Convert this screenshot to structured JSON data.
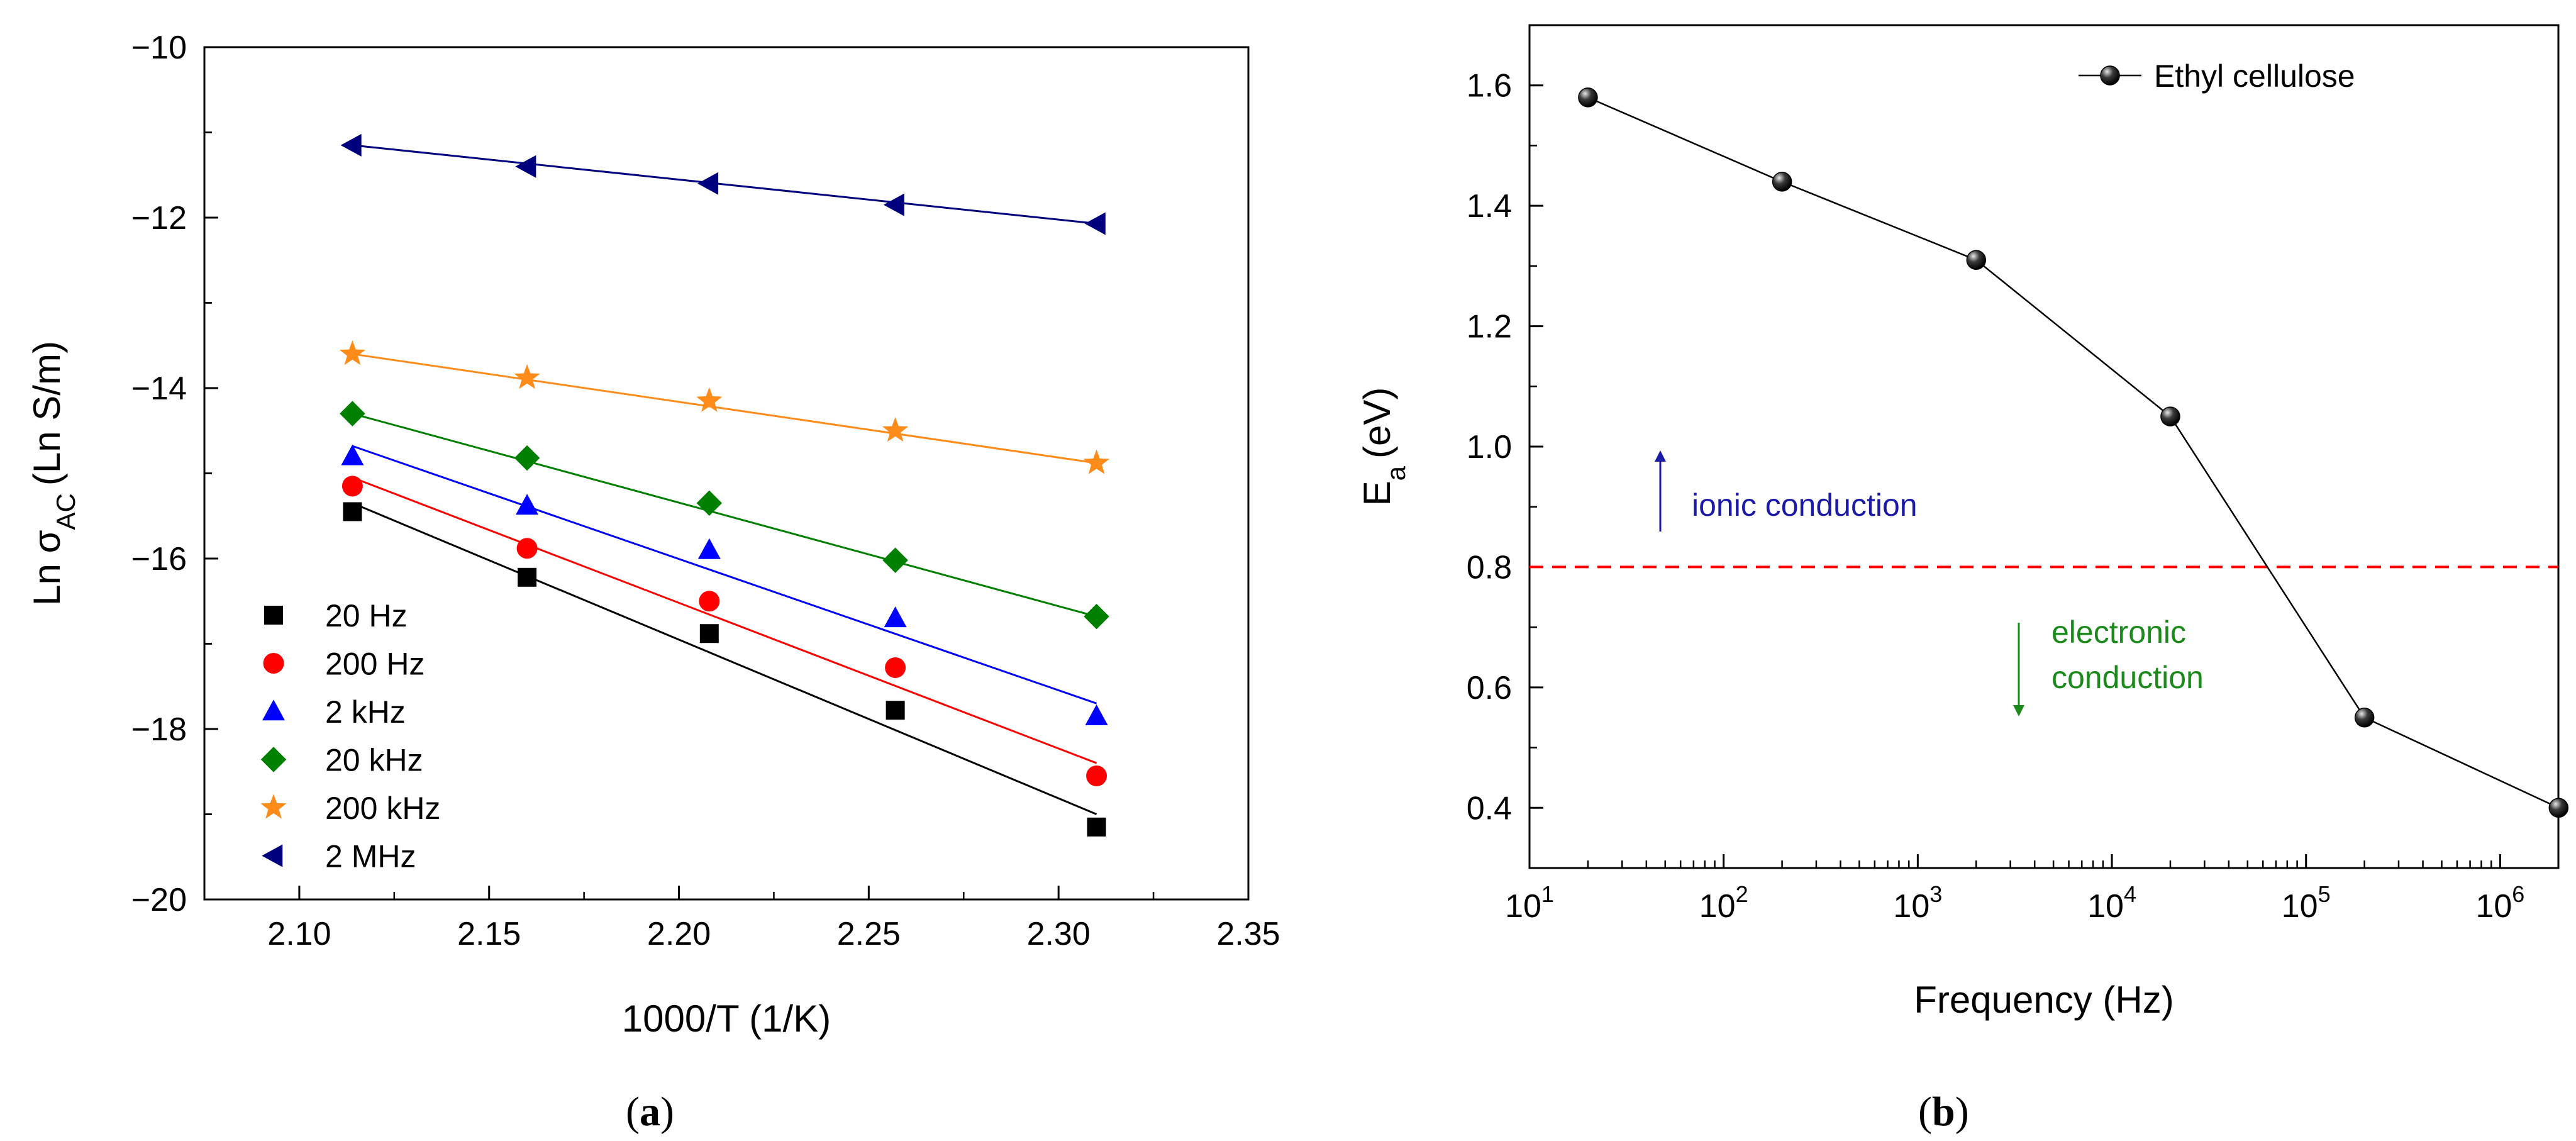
{
  "chart_data": [
    {
      "panel": "a",
      "type": "scatter",
      "title": "",
      "xlabel": "1000/T (1/K)",
      "ylabel": {
        "main": "Ln σ",
        "sub": "AC",
        "unit": "(Ln S/m)"
      },
      "xlim": [
        2.075,
        2.35
      ],
      "ylim": [
        -20,
        -10
      ],
      "xticks": [
        "2.10",
        "2.15",
        "2.20",
        "2.25",
        "2.30",
        "2.35"
      ],
      "yticks": [
        "−10",
        "−12",
        "−14",
        "−16",
        "−18",
        "−20"
      ],
      "grid": false,
      "legend_position": "bottom-left",
      "x": [
        2.114,
        2.16,
        2.208,
        2.257,
        2.31
      ],
      "series": [
        {
          "name": "20 Hz",
          "marker": "square",
          "color": "#000000",
          "values": [
            -15.45,
            -16.22,
            -16.88,
            -17.78,
            -19.15
          ],
          "fit": [
            -15.35,
            -19.0
          ]
        },
        {
          "name": "200 Hz",
          "marker": "circle",
          "color": "#ff0000",
          "values": [
            -15.15,
            -15.88,
            -16.5,
            -17.28,
            -18.55
          ],
          "fit": [
            -15.05,
            -18.4
          ]
        },
        {
          "name": "2 kHz",
          "marker": "triangle-up",
          "color": "#0000ff",
          "values": [
            -14.8,
            -15.38,
            -15.9,
            -16.7,
            -17.85
          ],
          "fit": [
            -14.68,
            -17.7
          ]
        },
        {
          "name": "20 kHz",
          "marker": "diamond",
          "color": "#008000",
          "values": [
            -14.3,
            -14.82,
            -15.35,
            -16.02,
            -16.68
          ],
          "fit": [
            -14.3,
            -16.68
          ]
        },
        {
          "name": "200 kHz",
          "marker": "star",
          "color": "#ff8c1a",
          "values": [
            -13.6,
            -13.88,
            -14.15,
            -14.5,
            -14.88
          ],
          "fit": [
            -13.6,
            -14.88
          ]
        },
        {
          "name": "2 MHz",
          "marker": "triangle-left",
          "color": "#00007f",
          "values": [
            -11.15,
            -11.4,
            -11.6,
            -11.85,
            -12.07
          ],
          "fit": [
            -11.15,
            -12.07
          ]
        }
      ]
    },
    {
      "panel": "b",
      "type": "line",
      "title": "",
      "xlabel": "Frequency (Hz)",
      "ylabel": {
        "main": "E",
        "sub": "a",
        "unit": "(eV)"
      },
      "xscale": "log",
      "xlim_exp": [
        1,
        6.3
      ],
      "ylim": [
        0.3,
        1.7
      ],
      "xticks": [
        {
          "base": "10",
          "exp": "1"
        },
        {
          "base": "10",
          "exp": "2"
        },
        {
          "base": "10",
          "exp": "3"
        },
        {
          "base": "10",
          "exp": "4"
        },
        {
          "base": "10",
          "exp": "5"
        },
        {
          "base": "10",
          "exp": "6"
        }
      ],
      "yticks": [
        "0.4",
        "0.6",
        "0.8",
        "1.0",
        "1.2",
        "1.4",
        "1.6"
      ],
      "grid": false,
      "legend_position": "top-right",
      "series": [
        {
          "name": "Ethyl cellulose",
          "marker": "sphere",
          "color": "#000000",
          "x": [
            20,
            200,
            2000,
            20000,
            200000,
            2000000
          ],
          "values": [
            1.58,
            1.44,
            1.31,
            1.05,
            0.55,
            0.4
          ]
        }
      ],
      "threshold": {
        "value": 0.8,
        "color": "#ff0000",
        "style": "dashed"
      },
      "annotations": [
        {
          "text": "ionic conduction",
          "color": "#1a1aa6",
          "arrow": "up"
        },
        {
          "text": "electronic",
          "text2": "conduction",
          "color": "#1a8a1a",
          "arrow": "down"
        }
      ]
    }
  ],
  "panel_labels": {
    "a": "a",
    "b": "b"
  }
}
